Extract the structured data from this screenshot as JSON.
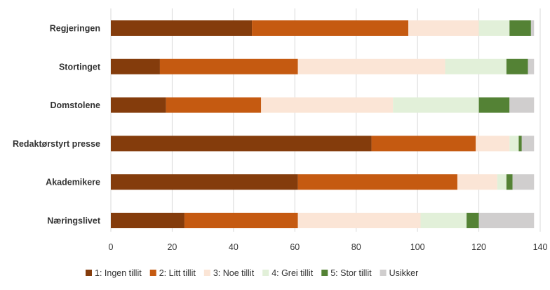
{
  "chart_data": {
    "type": "bar",
    "orientation": "horizontal",
    "stacked": true,
    "title": "",
    "xlabel": "",
    "ylabel": "",
    "categories": [
      "Regjeringen",
      "Stortinget",
      "Domstolene",
      "Redaktørstyrt presse",
      "Akademikere",
      "Næringslivet"
    ],
    "series": [
      {
        "name": "1: Ingen tillit",
        "color": "#843c0c",
        "values": [
          46,
          16,
          18,
          85,
          61,
          24
        ]
      },
      {
        "name": "2: Litt tillit",
        "color": "#c55a11",
        "values": [
          51,
          45,
          31,
          34,
          52,
          37
        ]
      },
      {
        "name": "3: Noe tillit",
        "color": "#fbe5d6",
        "values": [
          23,
          48,
          43,
          11,
          13,
          40
        ]
      },
      {
        "name": "4: Grei tillit",
        "color": "#e2f0d9",
        "values": [
          10,
          20,
          28,
          3,
          3,
          15
        ]
      },
      {
        "name": "5: Stor tillit",
        "color": "#548235",
        "values": [
          7,
          7,
          10,
          1,
          2,
          4
        ]
      },
      {
        "name": "Usikker",
        "color": "#d0cece",
        "values": [
          1,
          2,
          8,
          4,
          7,
          18
        ]
      }
    ],
    "xlim": [
      0,
      140
    ],
    "xticks": [
      0,
      20,
      40,
      60,
      80,
      100,
      120,
      140
    ],
    "grid": true,
    "legend": "bottom"
  }
}
